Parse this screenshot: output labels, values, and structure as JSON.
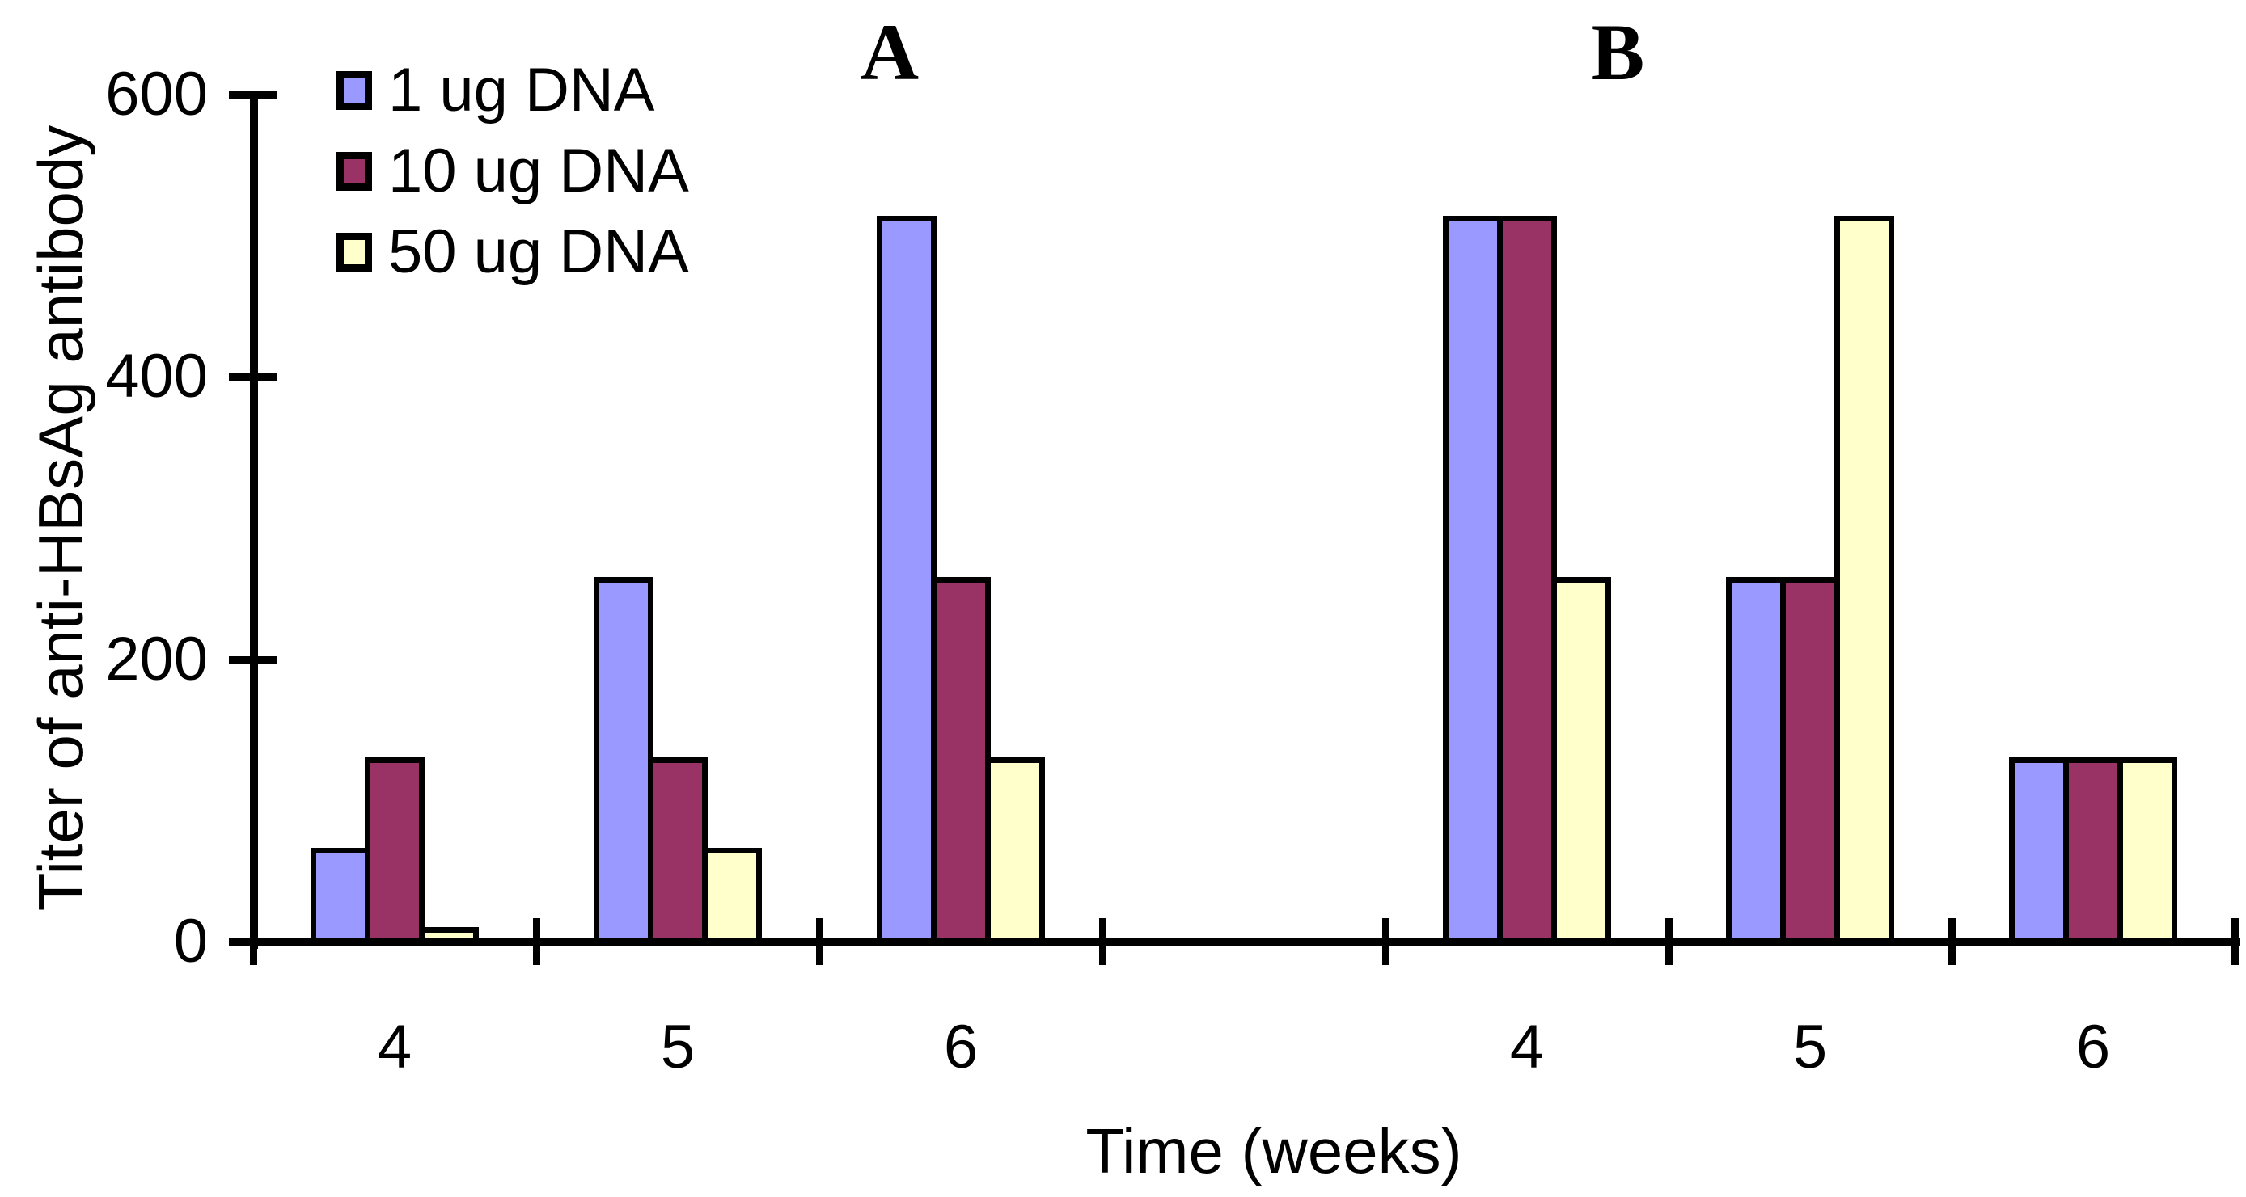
{
  "chart_data": {
    "type": "bar",
    "title": "",
    "xlabel": "Time (weeks)",
    "ylabel": "Titer of anti-HBsAg antibody",
    "ylim": [
      0,
      600
    ],
    "yticks": [
      0,
      200,
      400,
      600
    ],
    "grid": false,
    "legend_position": "top-left",
    "legend": [
      {
        "label": "1 ug DNA",
        "color": "#9999FF"
      },
      {
        "label": "10 ug DNA",
        "color": "#993366"
      },
      {
        "label": "50 ug DNA",
        "color": "#FFFFCC"
      }
    ],
    "panels": [
      {
        "label": "A",
        "categories": [
          "4",
          "5",
          "6"
        ],
        "series": [
          {
            "name": "1 ug DNA",
            "values": [
              64,
              256,
              512
            ]
          },
          {
            "name": "10 ug DNA",
            "values": [
              128,
              128,
              256
            ]
          },
          {
            "name": "50 ug DNA",
            "values": [
              8,
              64,
              128
            ]
          }
        ]
      },
      {
        "label": "B",
        "categories": [
          "4",
          "5",
          "6"
        ],
        "series": [
          {
            "name": "1 ug DNA",
            "values": [
              512,
              256,
              128
            ]
          },
          {
            "name": "10 ug DNA",
            "values": [
              512,
              256,
              128
            ]
          },
          {
            "name": "50 ug DNA",
            "values": [
              256,
              512,
              128
            ]
          }
        ]
      }
    ]
  }
}
